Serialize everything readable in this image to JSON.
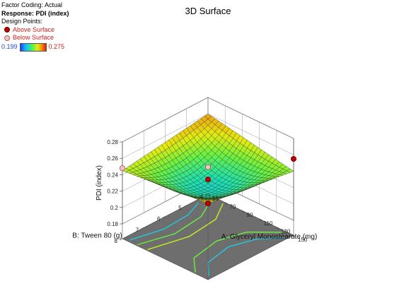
{
  "legend": {
    "factor_coding": "Factor Coding: Actual",
    "response": "Response: PDI (index)",
    "design_points": "Design Points:",
    "above": "Above Surface",
    "below": "Below Surface",
    "color_min": "0.199",
    "color_max": "0.275"
  },
  "chart_data": {
    "type": "surface",
    "title": "3D Surface",
    "zlabel": "PDI (index)",
    "xlabel": "A: Glyceryl Monostearate (mg)",
    "ylabel": "B: Tween 80 (g)",
    "z_ticks": [
      "0.18",
      "0.2",
      "0.22",
      "0.24",
      "0.26",
      "0.28"
    ],
    "x_ticks": [
      "50",
      "70",
      "90",
      "110",
      "130",
      "150"
    ],
    "y_ticks": [
      "4",
      "5",
      "6",
      "7",
      "8"
    ],
    "zlim": [
      0.18,
      0.28
    ],
    "xlim": [
      50,
      150
    ],
    "ylim": [
      4,
      8
    ],
    "color_range": [
      0.199,
      0.275
    ],
    "corner_values": {
      "a50_b4": 0.26,
      "a150_b4": 0.24,
      "a50_b8": 0.245,
      "a150_b8": 0.255,
      "center": 0.199
    },
    "design_points": [
      {
        "a": 50,
        "b": 8,
        "pdi": 0.248,
        "position": "below"
      },
      {
        "a": 150,
        "b": 4,
        "pdi": 0.255,
        "position": "above"
      },
      {
        "a": 150,
        "b": 8,
        "pdi": 0.255,
        "position": "above"
      },
      {
        "a": 100,
        "b": 6,
        "pdi": 0.232,
        "position": "above"
      },
      {
        "a": 50,
        "b": 4,
        "pdi": 0.195,
        "position": "below"
      }
    ]
  }
}
